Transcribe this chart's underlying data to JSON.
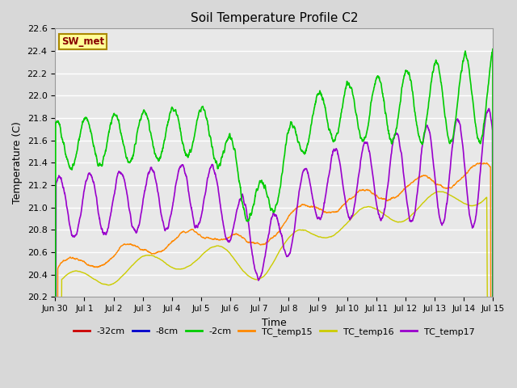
{
  "title": "Soil Temperature Profile C2",
  "xlabel": "Time",
  "ylabel": "Temperature (C)",
  "ylim": [
    20.2,
    22.6
  ],
  "xlim": [
    0,
    15.0
  ],
  "xtick_labels": [
    "Jun 30",
    "Jul 1",
    "Jul 2",
    "Jul 3",
    "Jul 4",
    "Jul 5",
    "Jul 6",
    "Jul 7",
    "Jul 8",
    "Jul 9",
    "Jul 10",
    "Jul 11",
    "Jul 12",
    "Jul 13",
    "Jul 14",
    "Jul 15"
  ],
  "legend_labels": [
    "-32cm",
    "-8cm",
    "-2cm",
    "TC_temp15",
    "TC_temp16",
    "TC_temp17"
  ],
  "legend_colors": [
    "#cc0000",
    "#0000cc",
    "#00cc00",
    "#ff8800",
    "#cccc00",
    "#9900cc"
  ],
  "line_colors": {
    "line_32": "#cc0000",
    "line_8": "#0000cc",
    "line_2": "#00cc00",
    "line_tc15": "#ff8800",
    "line_tc16": "#cccc00",
    "line_tc17": "#9900cc"
  },
  "bg_color": "#d8d8d8",
  "plot_bg": "#e8e8e8",
  "annotation_text": "SW_met",
  "annotation_color": "#880000",
  "annotation_bg": "#ffff99",
  "annotation_border": "#aa8800"
}
